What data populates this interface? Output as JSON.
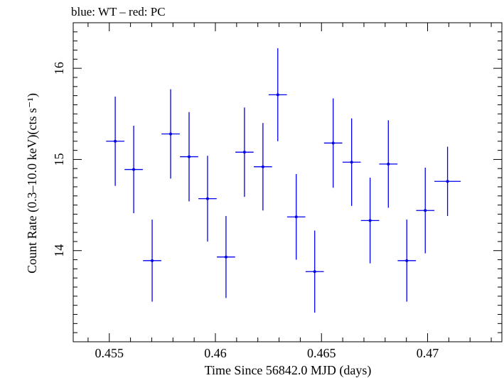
{
  "header": {
    "legend_note": "blue: WT – red: PC"
  },
  "chart_data": {
    "type": "scatter",
    "title": "",
    "xlabel": "Time Since 56842.0 MJD (days)",
    "ylabel": "Count Rate (0.3–10.0 keV)(cts s⁻¹)",
    "xlim": [
      0.4533,
      0.4735
    ],
    "ylim": [
      13.0,
      16.5
    ],
    "x_ticks": [
      0.455,
      0.46,
      0.465,
      0.47
    ],
    "x_tick_labels": [
      "0.455",
      "0.46",
      "0.465",
      "0.47"
    ],
    "y_ticks": [
      14,
      15,
      16
    ],
    "y_tick_labels": [
      "14",
      "15",
      "16"
    ],
    "grid": false,
    "series": [
      {
        "color": "#0000ee",
        "points": [
          {
            "x": 0.45528,
            "xerr": 0.00043,
            "y": 15.2,
            "yerr": 0.49
          },
          {
            "x": 0.45615,
            "xerr": 0.00043,
            "y": 14.89,
            "yerr": 0.48
          },
          {
            "x": 0.45702,
            "xerr": 0.00043,
            "y": 13.89,
            "yerr": 0.45
          },
          {
            "x": 0.45789,
            "xerr": 0.00043,
            "y": 15.28,
            "yerr": 0.49
          },
          {
            "x": 0.45876,
            "xerr": 0.00043,
            "y": 15.03,
            "yerr": 0.49
          },
          {
            "x": 0.45963,
            "xerr": 0.00043,
            "y": 14.57,
            "yerr": 0.47
          },
          {
            "x": 0.4605,
            "xerr": 0.00043,
            "y": 13.93,
            "yerr": 0.45
          },
          {
            "x": 0.46137,
            "xerr": 0.00043,
            "y": 15.08,
            "yerr": 0.49
          },
          {
            "x": 0.46224,
            "xerr": 0.00043,
            "y": 14.92,
            "yerr": 0.48
          },
          {
            "x": 0.46294,
            "xerr": 0.00043,
            "y": 15.71,
            "yerr": 0.51
          },
          {
            "x": 0.46381,
            "xerr": 0.00043,
            "y": 14.37,
            "yerr": 0.47
          },
          {
            "x": 0.46468,
            "xerr": 0.00043,
            "y": 13.77,
            "yerr": 0.45
          },
          {
            "x": 0.46555,
            "xerr": 0.00043,
            "y": 15.18,
            "yerr": 0.49
          },
          {
            "x": 0.46642,
            "xerr": 0.00043,
            "y": 14.97,
            "yerr": 0.48
          },
          {
            "x": 0.46729,
            "xerr": 0.00043,
            "y": 14.33,
            "yerr": 0.47
          },
          {
            "x": 0.46815,
            "xerr": 0.00043,
            "y": 14.95,
            "yerr": 0.48
          },
          {
            "x": 0.46902,
            "xerr": 0.00043,
            "y": 13.89,
            "yerr": 0.45
          },
          {
            "x": 0.46989,
            "xerr": 0.00043,
            "y": 14.44,
            "yerr": 0.47
          },
          {
            "x": 0.47094,
            "xerr": 0.00062,
            "y": 14.76,
            "yerr": 0.38
          }
        ]
      }
    ]
  }
}
